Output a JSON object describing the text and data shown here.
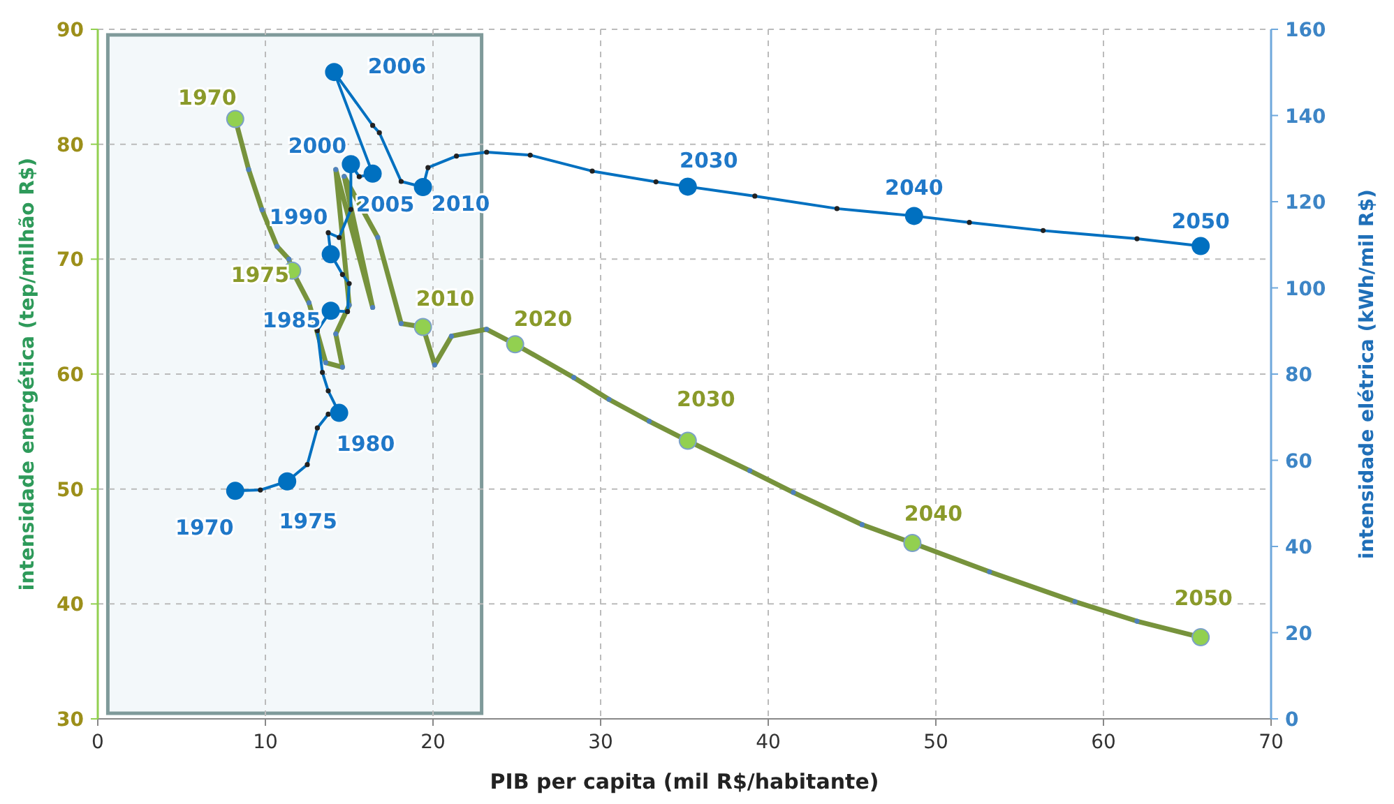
{
  "chart_data": {
    "type": "line",
    "xlabel": "PIB per capita (mil R$/habitante)",
    "ylabel": "intensidade energética (tep/milhão  R$)",
    "y2label": "intensidade elétrica (kWh/mil R$)",
    "xlim": [
      0,
      70
    ],
    "xticks": [
      0,
      10,
      20,
      30,
      40,
      50,
      60,
      70
    ],
    "ylim": [
      30,
      90
    ],
    "yticks": [
      30,
      40,
      50,
      60,
      70,
      80,
      90
    ],
    "y2lim": [
      0,
      160
    ],
    "y2ticks": [
      0,
      20,
      40,
      60,
      80,
      100,
      120,
      140,
      160
    ],
    "grid": true,
    "marker": "circle",
    "line_style": "solid",
    "bands": [
      {
        "axis": "x",
        "from": 0.6,
        "to": 22.9,
        "color": "#f3f8fa"
      }
    ],
    "annotations": [
      {
        "text": "1970",
        "x": 8.2,
        "y": 82.2
      },
      {
        "text": "1975",
        "x": 11.6,
        "y": 69.0
      },
      {
        "text": "2010",
        "x": 19.4,
        "y": 64.1
      },
      {
        "text": "2020",
        "x": 24.9,
        "y": 62.6
      },
      {
        "text": "2030",
        "x": 35.2,
        "y": 54.2
      },
      {
        "text": "2040",
        "x": 48.6,
        "y": 45.3
      },
      {
        "text": "2050",
        "x": 65.8,
        "y": 37.1
      },
      {
        "text": "1970",
        "x": 8.2,
        "y": 49.8
      },
      {
        "text": "1975",
        "x": 11.3,
        "y": 50.7
      },
      {
        "text": "1980",
        "x": 14.4,
        "y": 56.6
      },
      {
        "text": "1985",
        "x": 13.9,
        "y": 65.5
      },
      {
        "text": "1990",
        "x": 13.9,
        "y": 70.4
      },
      {
        "text": "2000",
        "x": 15.1,
        "y": 78.3
      },
      {
        "text": "2005",
        "x": 16.4,
        "y": 77.4
      },
      {
        "text": "2006",
        "x": 14.1,
        "y": 86.3
      },
      {
        "text": "2010",
        "x": 19.4,
        "y": 76.3
      },
      {
        "text": "2030",
        "x": 35.2,
        "y": 76.3
      },
      {
        "text": "2040",
        "x": 48.7,
        "y": 73.8
      },
      {
        "text": "2050",
        "x": 65.8,
        "y": 71.1
      }
    ],
    "series": [
      {
        "color": "#77933c",
        "x": [
          8.2,
          9.0,
          9.8,
          10.7,
          11.4,
          11.6,
          12.6,
          13.6,
          14.6,
          14.2,
          15.0,
          14.2,
          16.4,
          14.7,
          16.7,
          18.1,
          19.4,
          20.1,
          21.1,
          23.2,
          24.9,
          28.4,
          30.5,
          32.9,
          35.2,
          38.9,
          41.5,
          45.6,
          48.6,
          53.2,
          58.3,
          62.0,
          65.8
        ],
        "values": [
          82.2,
          77.8,
          74.3,
          71.1,
          70.0,
          69.0,
          66.2,
          61.0,
          60.6,
          63.5,
          66.0,
          77.8,
          65.8,
          77.2,
          71.9,
          64.4,
          64.1,
          60.8,
          63.3,
          63.9,
          62.6,
          59.7,
          57.8,
          55.9,
          54.2,
          51.6,
          49.7,
          46.9,
          45.3,
          42.8,
          40.2,
          38.5,
          37.1
        ]
      },
      {
        "color": "#0070c0",
        "axis": "y2",
        "x": [
          8.2,
          9.7,
          11.3,
          12.5,
          13.1,
          13.75,
          14.4,
          13.75,
          13.4,
          13.1,
          13.9,
          14.9,
          15.0,
          14.6,
          13.9,
          13.75,
          14.4,
          15.1,
          15.1,
          15.6,
          16.4,
          14.1,
          16.4,
          16.8,
          18.1,
          19.4,
          19.7,
          21.4,
          23.2,
          25.8,
          29.5,
          33.3,
          35.2,
          39.2,
          44.1,
          48.7,
          52.0,
          56.4,
          62.0,
          65.8
        ],
        "values": [
          52.9,
          53.1,
          55.1,
          59.0,
          67.5,
          70.7,
          71.0,
          76.1,
          80.4,
          90.1,
          94.7,
          94.5,
          101,
          103.1,
          107.8,
          112.8,
          111.7,
          118.2,
          128.7,
          125.8,
          126.5,
          150.1,
          137.7,
          136.0,
          124.7,
          123.4,
          127.9,
          130.6,
          131.5,
          130.8,
          127.1,
          124.6,
          123.5,
          121.3,
          118.4,
          116.7,
          115.2,
          113.3,
          111.4,
          109.7
        ]
      }
    ]
  }
}
